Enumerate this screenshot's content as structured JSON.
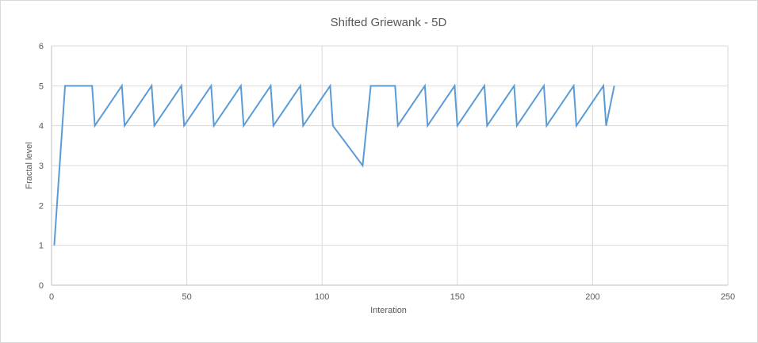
{
  "chart_data": {
    "type": "line",
    "title": "Shifted Griewank - 5D",
    "xlabel": "Interation",
    "ylabel": "Fractal level",
    "xlim": [
      0,
      250
    ],
    "ylim": [
      0,
      6
    ],
    "xticks": [
      0,
      50,
      100,
      150,
      200,
      250
    ],
    "yticks": [
      0,
      1,
      2,
      3,
      4,
      5,
      6
    ],
    "grid": true,
    "legend": "none",
    "series": [
      {
        "color": "#5b9bd5",
        "x": [
          1,
          5,
          15,
          16,
          26,
          27,
          37,
          38,
          48,
          49,
          59,
          60,
          70,
          71,
          81,
          82,
          92,
          93,
          103,
          104,
          115,
          118,
          127,
          128,
          138,
          139,
          149,
          150,
          160,
          161,
          171,
          172,
          182,
          183,
          193,
          194,
          204,
          205,
          208
        ],
        "y": [
          1,
          5,
          5,
          4,
          5,
          4,
          5,
          4,
          5,
          4,
          5,
          4,
          5,
          4,
          5,
          4,
          5,
          4,
          5,
          4,
          3,
          5,
          5,
          4,
          5,
          4,
          5,
          4,
          5,
          4,
          5,
          4,
          5,
          4,
          5,
          4,
          5,
          4,
          5
        ]
      }
    ]
  }
}
